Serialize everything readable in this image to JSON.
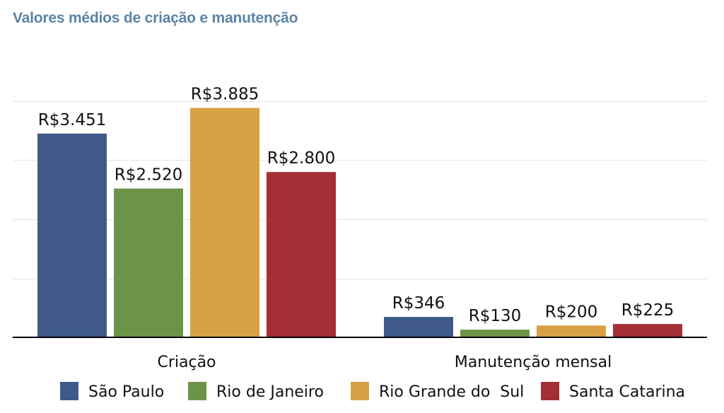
{
  "chart_data": {
    "type": "bar",
    "title": "Valores médios de criação e manutenção",
    "xlabel": "",
    "ylabel": "",
    "categories": [
      "Criação",
      "Manutenção mensal"
    ],
    "series": [
      {
        "name": "São Paulo",
        "values": [
          3451,
          346
        ],
        "labels": [
          "R$3.451",
          "R$346"
        ],
        "color": "#3f5a8a"
      },
      {
        "name": "Rio de Janeiro",
        "values": [
          2520,
          130
        ],
        "labels": [
          "R$2.520",
          "R$130"
        ],
        "color": "#6c9448"
      },
      {
        "name": "Rio Grande do  Sul",
        "values": [
          3885,
          200
        ],
        "labels": [
          "R$3.885",
          "R$200"
        ],
        "color": "#d7a043"
      },
      {
        "name": "Santa Catarina",
        "values": [
          2800,
          225
        ],
        "labels": [
          "R$2.800",
          "R$225"
        ],
        "color": "#a42e35"
      }
    ],
    "ylim": [
      0,
      4000
    ],
    "grid": true,
    "legend": "bottom"
  }
}
